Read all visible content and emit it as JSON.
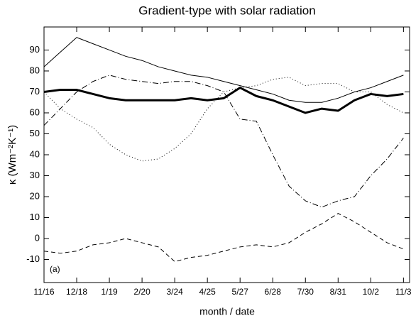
{
  "chart_data": {
    "type": "line",
    "title": "Gradient-type with solar radiation",
    "xlabel": "month / date",
    "ylabel": "κ (Wm⁻²K⁻¹)",
    "annotation": "(a)",
    "x": [
      0,
      16,
      32,
      48,
      64,
      80,
      96,
      112,
      128,
      144,
      160,
      176,
      192,
      208,
      224,
      240,
      256,
      272,
      288,
      304,
      320,
      336,
      352
    ],
    "series": [
      {
        "color": "#000000",
        "width": 1,
        "dash": "solid",
        "values": [
          82,
          89,
          96,
          93,
          90,
          87,
          85,
          82,
          80,
          78,
          77,
          75,
          73,
          71,
          69,
          66,
          65,
          65,
          67,
          70,
          72,
          75,
          78
        ]
      },
      {
        "color": "#000000",
        "width": 3,
        "dash": "solid",
        "values": [
          70,
          71,
          71,
          69,
          67,
          66,
          66,
          66,
          66,
          67,
          66,
          67,
          72,
          68,
          66,
          63,
          60,
          62,
          61,
          66,
          69,
          68,
          69
        ]
      },
      {
        "color": "#000000",
        "width": 1,
        "dash": "dotted",
        "values": [
          70,
          62,
          57,
          53,
          45,
          40,
          37,
          38,
          43,
          50,
          62,
          70,
          72,
          73,
          76,
          77,
          73,
          74,
          74,
          70,
          70,
          64,
          60
        ]
      },
      {
        "color": "#000000",
        "width": 1,
        "dash": "dashdot",
        "values": [
          54,
          62,
          70,
          75,
          78,
          76,
          75,
          74,
          75,
          75,
          73,
          70,
          57,
          56,
          40,
          25,
          18,
          15,
          18,
          20,
          30,
          38,
          48
        ]
      },
      {
        "color": "#000000",
        "width": 1,
        "dash": "dashed",
        "values": [
          -6,
          -7,
          -6,
          -3,
          -2,
          0,
          -2,
          -4,
          -11,
          -9,
          -8,
          -6,
          -4,
          -3,
          -4,
          -2,
          3,
          7,
          12,
          8,
          3,
          -2,
          -5
        ]
      }
    ],
    "xlim": [
      0,
      358
    ],
    "xticks": [
      {
        "value": 0,
        "label": "11/16"
      },
      {
        "value": 32,
        "label": "12/18"
      },
      {
        "value": 64,
        "label": "1/19"
      },
      {
        "value": 96,
        "label": "2/20"
      },
      {
        "value": 128,
        "label": "3/24"
      },
      {
        "value": 160,
        "label": "4/25"
      },
      {
        "value": 192,
        "label": "5/27"
      },
      {
        "value": 224,
        "label": "6/28"
      },
      {
        "value": 256,
        "label": "7/30"
      },
      {
        "value": 288,
        "label": "8/31"
      },
      {
        "value": 320,
        "label": "10/2"
      },
      {
        "value": 352,
        "label": "11/3"
      }
    ],
    "ylim": [
      -21,
      101
    ],
    "yticks": [
      -10,
      0,
      10,
      20,
      30,
      40,
      50,
      60,
      70,
      80,
      90
    ],
    "grid": false
  }
}
